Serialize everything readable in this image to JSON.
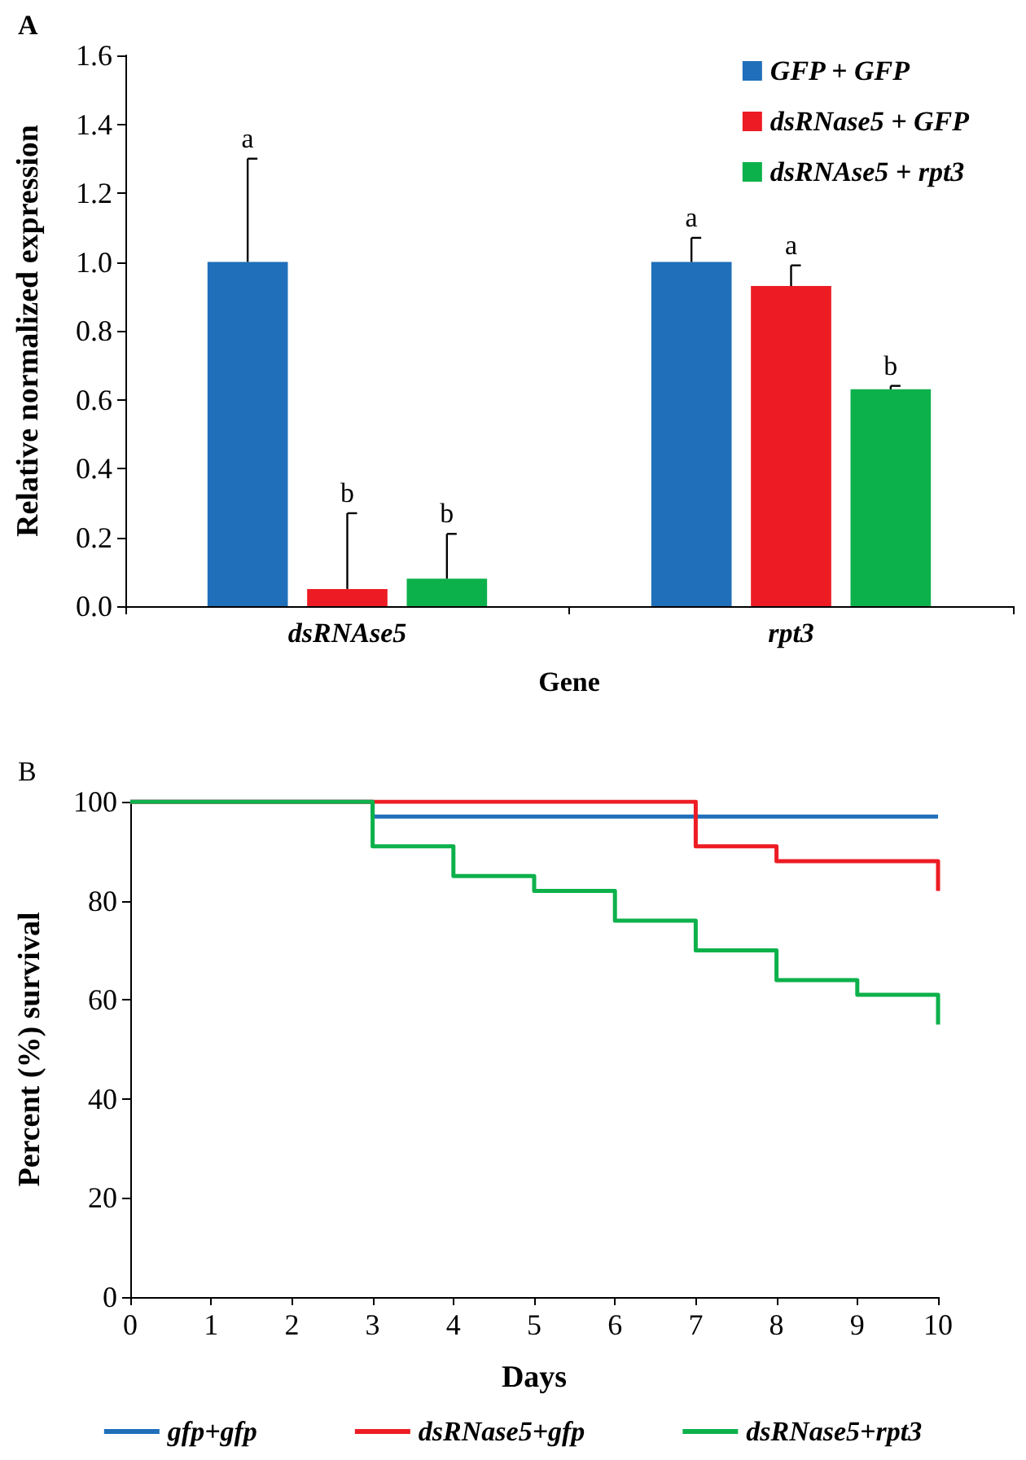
{
  "chart_data": [
    {
      "type": "bar",
      "title": "A",
      "xlabel": "Gene",
      "ylabel": "Relative normalized expression",
      "categories": [
        "dsRNAse5",
        "rpt3"
      ],
      "series": [
        {
          "name": "GFP + GFP",
          "color": "#1f6fba",
          "values": [
            1.0,
            1.0
          ],
          "errors": [
            [
              1.0,
              1.3
            ],
            [
              1.0,
              1.07
            ]
          ]
        },
        {
          "name": "dsRNase5 + GFP",
          "color": "#ed1c24",
          "values": [
            0.05,
            0.93
          ],
          "errors": [
            [
              0.05,
              0.27
            ],
            [
              0.93,
              0.99
            ]
          ]
        },
        {
          "name": "dsRNAse5 + rpt3",
          "color": "#0db14b",
          "values": [
            0.08,
            0.63
          ],
          "errors": [
            [
              0.08,
              0.21
            ],
            [
              0.63,
              0.64
            ]
          ]
        }
      ],
      "annotations": [
        "a",
        "b",
        "b",
        "a",
        "a",
        "b"
      ],
      "ylim": [
        0,
        1.6
      ],
      "yticks": [
        {
          "value": 0,
          "label": "0.0"
        },
        {
          "value": 0.2,
          "label": "0.2"
        },
        {
          "value": 0.4,
          "label": "0.4"
        },
        {
          "value": 0.6,
          "label": "0.6"
        },
        {
          "value": 0.8,
          "label": "0.8"
        },
        {
          "value": 1.0,
          "label": "1.0"
        },
        {
          "value": 1.2,
          "label": "1.2"
        },
        {
          "value": 1.4,
          "label": "1.4"
        },
        {
          "value": 1.6,
          "label": "1.6"
        }
      ],
      "legend": "top right",
      "grid": false
    },
    {
      "type": "step",
      "title": "B",
      "xlabel": "Days",
      "ylabel": "Percent (%) survival",
      "series": [
        {
          "name": "gfp+gfp",
          "color": "#1f6fba",
          "x": [
            0,
            3,
            10
          ],
          "values": [
            100,
            97,
            97
          ]
        },
        {
          "name": "dsRNase5+gfp",
          "color": "#ed1c24",
          "x": [
            0,
            7,
            8,
            10,
            10
          ],
          "values": [
            100,
            91,
            88,
            88,
            82
          ]
        },
        {
          "name": "dsRNase5+rpt3",
          "color": "#0db14b",
          "x": [
            0,
            3,
            4,
            5,
            6,
            7,
            8,
            9,
            10,
            10
          ],
          "values": [
            100,
            91,
            85,
            82,
            76,
            70,
            64,
            61,
            61,
            55
          ]
        }
      ],
      "xlim": [
        0,
        10
      ],
      "xticks": [
        0,
        1,
        2,
        3,
        4,
        5,
        6,
        7,
        8,
        9,
        10
      ],
      "ylim": [
        0,
        100
      ],
      "yticks": [
        0,
        20,
        40,
        60,
        80,
        100
      ],
      "legend": "bottom",
      "marker": "none",
      "grid": false
    }
  ]
}
